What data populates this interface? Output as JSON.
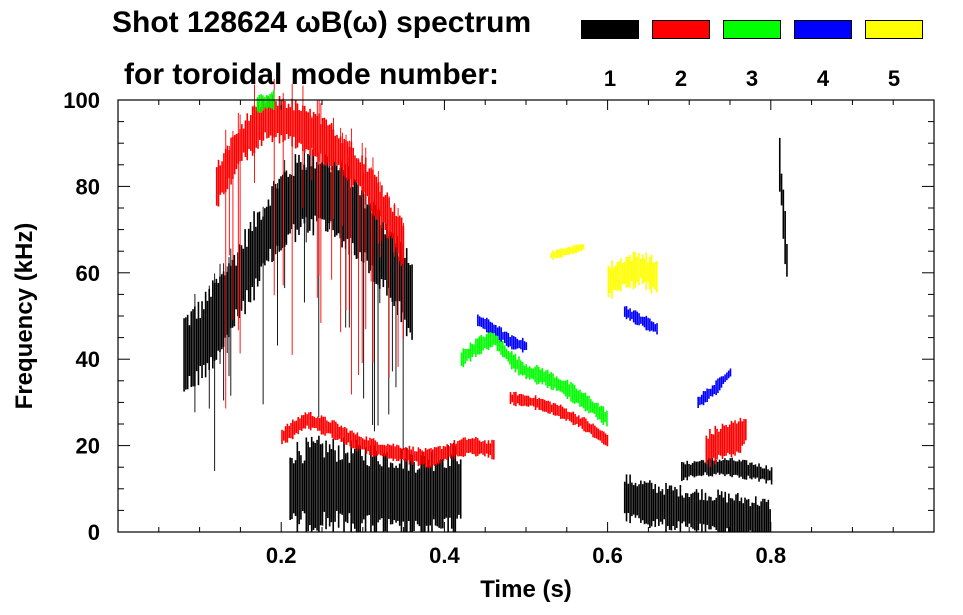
{
  "title": {
    "line1": "Shot 128624 ωB(ω) spectrum",
    "line2": "for toroidal mode number:"
  },
  "legend": [
    {
      "label": "1",
      "color": "#000000"
    },
    {
      "label": "2",
      "color": "#ff0000"
    },
    {
      "label": "3",
      "color": "#00ff00"
    },
    {
      "label": "4",
      "color": "#0000ff"
    },
    {
      "label": "5",
      "color": "#ffff00"
    }
  ],
  "chart_data": {
    "type": "heatmap",
    "title": "Shot 128624 ωB(ω) spectrum for toroidal mode number",
    "xlabel": "Time (s)",
    "ylabel": "Frequency (kHz)",
    "xlim": [
      0.0,
      1.0
    ],
    "ylim": [
      0,
      100
    ],
    "xticks": [
      0.2,
      0.4,
      0.6,
      0.8
    ],
    "xtick_labels": [
      "0.2",
      "0.4",
      "0.6",
      "0.8"
    ],
    "yticks": [
      0,
      20,
      40,
      60,
      80,
      100
    ],
    "ytick_labels": [
      "0",
      "20",
      "40",
      "60",
      "80",
      "100"
    ],
    "series": [
      {
        "name": "n=1",
        "color": "#000000",
        "features": [
          {
            "kind": "chirp-band",
            "t": [
              0.08,
              0.1,
              0.13,
              0.16,
              0.19,
              0.22,
              0.25,
              0.28,
              0.31,
              0.34,
              0.36
            ],
            "f": [
              41,
              44,
              52,
              62,
              72,
              78,
              79,
              75,
              68,
              60,
              53
            ],
            "width": 9
          },
          {
            "kind": "band",
            "t": [
              0.21,
              0.25,
              0.29,
              0.33,
              0.37,
              0.4,
              0.42
            ],
            "f": [
              10,
              11,
              10,
              9,
              8,
              9,
              10
            ],
            "width": 10
          },
          {
            "kind": "band",
            "t": [
              0.69,
              0.72,
              0.75,
              0.78,
              0.8
            ],
            "f": [
              14,
              15,
              15,
              14,
              13
            ],
            "width": 2
          },
          {
            "kind": "band",
            "t": [
              0.62,
              0.66,
              0.7,
              0.74,
              0.78,
              0.8
            ],
            "f": [
              8,
              6,
              5,
              4,
              3,
              2
            ],
            "width": 5
          },
          {
            "kind": "band",
            "t": [
              0.81,
              0.815,
              0.82
            ],
            "f": [
              85,
              72,
              60
            ],
            "width": 6
          }
        ]
      },
      {
        "name": "n=2",
        "color": "#ff0000",
        "features": [
          {
            "kind": "chirp-band",
            "t": [
              0.12,
              0.15,
              0.18,
              0.21,
              0.24,
              0.27,
              0.3,
              0.33,
              0.35
            ],
            "f": [
              80,
              90,
              96,
              95,
              92,
              88,
              82,
              73,
              66
            ],
            "width": 5
          },
          {
            "kind": "band",
            "t": [
              0.2,
              0.23,
              0.26,
              0.29,
              0.32,
              0.35,
              0.38,
              0.41,
              0.43,
              0.46
            ],
            "f": [
              22,
              26,
              24,
              21,
              19,
              18,
              17,
              19,
              20,
              19
            ],
            "width": 2
          },
          {
            "kind": "band",
            "t": [
              0.48,
              0.51,
              0.54,
              0.57,
              0.6
            ],
            "f": [
              31,
              30,
              28,
              25,
              21
            ],
            "width": 1.5
          },
          {
            "kind": "band",
            "t": [
              0.72,
              0.74,
              0.76,
              0.77
            ],
            "f": [
              19,
              21,
              22,
              24
            ],
            "width": 4
          }
        ]
      },
      {
        "name": "n=3",
        "color": "#00ff00",
        "features": [
          {
            "kind": "band",
            "t": [
              0.42,
              0.44,
              0.46,
              0.48,
              0.5,
              0.52,
              0.55,
              0.58,
              0.6
            ],
            "f": [
              40,
              43,
              45,
              40,
              37,
              36,
              33,
              29,
              26
            ],
            "width": 2
          },
          {
            "kind": "band",
            "t": [
              0.17,
              0.19
            ],
            "f": [
              99,
              100
            ],
            "width": 2
          }
        ]
      },
      {
        "name": "n=4",
        "color": "#0000ff",
        "features": [
          {
            "kind": "band",
            "t": [
              0.44,
              0.46,
              0.48,
              0.5
            ],
            "f": [
              49,
              47,
              44,
              43
            ],
            "width": 1.5
          },
          {
            "kind": "band",
            "t": [
              0.71,
              0.73,
              0.75
            ],
            "f": [
              30,
              33,
              37
            ],
            "width": 1.5
          },
          {
            "kind": "band",
            "t": [
              0.62,
              0.64,
              0.66
            ],
            "f": [
              51,
              49,
              47
            ],
            "width": 1.5
          }
        ]
      },
      {
        "name": "n=5",
        "color": "#ffff00",
        "features": [
          {
            "kind": "band",
            "t": [
              0.6,
              0.62,
              0.64,
              0.66
            ],
            "f": [
              58,
              60,
              61,
              59
            ],
            "width": 4
          },
          {
            "kind": "band",
            "t": [
              0.53,
              0.55,
              0.57
            ],
            "f": [
              64,
              65,
              66
            ],
            "width": 1
          }
        ]
      }
    ]
  }
}
